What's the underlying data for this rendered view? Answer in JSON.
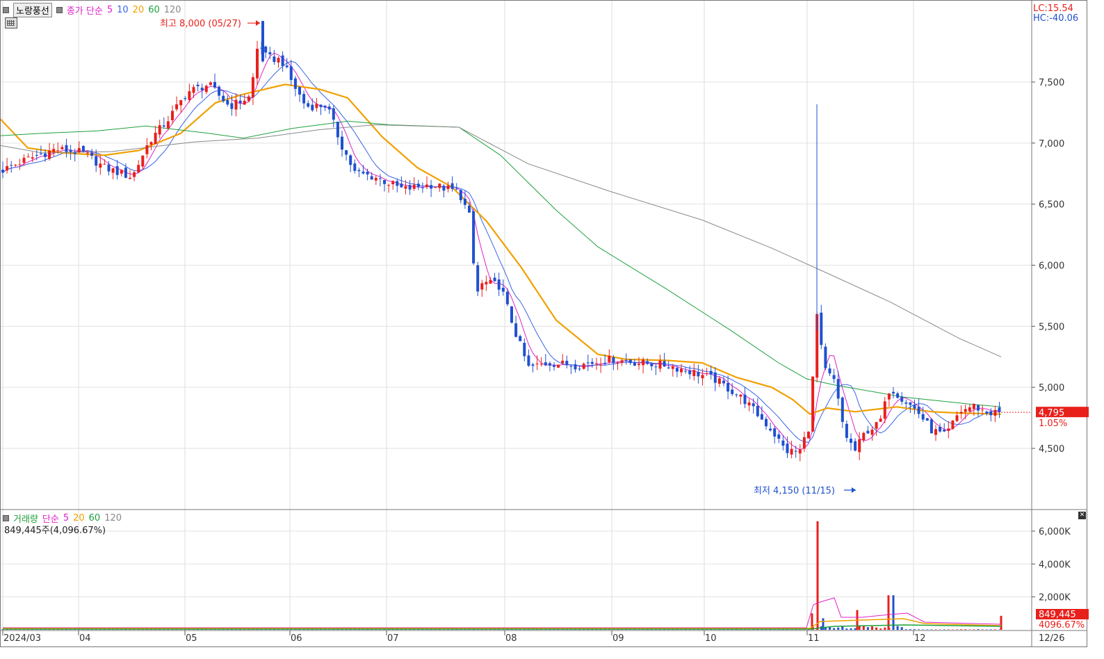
{
  "header": {
    "stock_name": "노랑풍선",
    "price_legend": {
      "prefix": "종가 단순",
      "ma5": "5",
      "ma10": "10",
      "ma20": "20",
      "ma60": "60",
      "ma120": "120"
    },
    "lc": "LC:15.54",
    "hc": "HC:-40.06"
  },
  "volume_panel": {
    "legend": {
      "prefix": "거래량",
      "kind": "단순",
      "ma5": "5",
      "ma20": "20",
      "ma60": "60",
      "ma120": "120"
    },
    "current_text": "849,445주(4,096.67%)",
    "current_value_label": "849,445",
    "current_pct_label": "4096.67%"
  },
  "annotations": {
    "high_text": "최고 8,000 (05/27)",
    "low_text": "최저 4,150 (11/15)",
    "last_price_label": "4,795",
    "last_change_label": "1.05%"
  },
  "colors": {
    "up": "#e8201c",
    "down": "#1f50d0",
    "ma5": "#e020c8",
    "ma10": "#3a64e6",
    "ma20": "#f0a000",
    "ma60": "#1ea03c",
    "ma120": "#888888",
    "vol_bar": "#1ea03c"
  },
  "chart_data": [
    {
      "type": "candlestick",
      "title": "노랑풍선",
      "y_ticks": [
        "4,500",
        "5,000",
        "5,500",
        "6,000",
        "6,500",
        "7,000",
        "7,500"
      ],
      "ylim": [
        4150,
        8000
      ],
      "x_ticks": [
        "2024/03",
        "04",
        "05",
        "06",
        "07",
        "08",
        "09",
        "10",
        "11",
        "12",
        "12/26"
      ],
      "high": {
        "value": 8000,
        "date": "05/27"
      },
      "low": {
        "value": 4150,
        "date": "11/15"
      },
      "last_close": 4795,
      "change_pct": 1.05,
      "moving_averages": {
        "ma20": [
          [
            0,
            7200
          ],
          [
            40,
            6960
          ],
          [
            90,
            6920
          ],
          [
            150,
            6900
          ],
          [
            200,
            6940
          ],
          [
            260,
            7080
          ],
          [
            310,
            7330
          ],
          [
            350,
            7400
          ],
          [
            410,
            7480
          ],
          [
            460,
            7440
          ],
          [
            500,
            7370
          ],
          [
            550,
            7050
          ],
          [
            600,
            6800
          ],
          [
            650,
            6640
          ],
          [
            700,
            6360
          ],
          [
            750,
            5980
          ],
          [
            800,
            5550
          ],
          [
            860,
            5270
          ],
          [
            900,
            5230
          ],
          [
            960,
            5220
          ],
          [
            1010,
            5200
          ],
          [
            1060,
            5080
          ],
          [
            1110,
            5000
          ],
          [
            1140,
            4900
          ],
          [
            1165,
            4780
          ],
          [
            1190,
            4830
          ],
          [
            1230,
            4800
          ],
          [
            1290,
            4840
          ],
          [
            1340,
            4800
          ],
          [
            1380,
            4790
          ],
          [
            1440,
            4780
          ]
        ],
        "ma60": [
          [
            0,
            7060
          ],
          [
            60,
            7080
          ],
          [
            140,
            7100
          ],
          [
            210,
            7140
          ],
          [
            300,
            7080
          ],
          [
            350,
            7040
          ],
          [
            420,
            7120
          ],
          [
            500,
            7180
          ],
          [
            560,
            7150
          ],
          [
            660,
            7130
          ],
          [
            720,
            6900
          ],
          [
            800,
            6450
          ],
          [
            860,
            6150
          ],
          [
            960,
            5800
          ],
          [
            1050,
            5470
          ],
          [
            1120,
            5200
          ],
          [
            1160,
            5070
          ],
          [
            1200,
            5020
          ],
          [
            1300,
            4920
          ],
          [
            1400,
            4860
          ],
          [
            1440,
            4840
          ]
        ],
        "ma120": [
          [
            0,
            6980
          ],
          [
            60,
            6920
          ],
          [
            160,
            6930
          ],
          [
            280,
            7010
          ],
          [
            370,
            7040
          ],
          [
            460,
            7110
          ],
          [
            540,
            7150
          ],
          [
            660,
            7130
          ],
          [
            760,
            6830
          ],
          [
            880,
            6600
          ],
          [
            1010,
            6370
          ],
          [
            1110,
            6140
          ],
          [
            1180,
            5960
          ],
          [
            1280,
            5700
          ],
          [
            1380,
            5400
          ],
          [
            1440,
            5250
          ]
        ]
      }
    },
    {
      "type": "bar",
      "title": "거래량",
      "y_ticks": [
        "2,000K",
        "4,000K",
        "6,000K"
      ],
      "ylim": [
        0,
        7000
      ],
      "unit": "K",
      "current_volume": 849445,
      "current_volume_pct": 4096.67,
      "peak_volume_k": 6600
    }
  ]
}
